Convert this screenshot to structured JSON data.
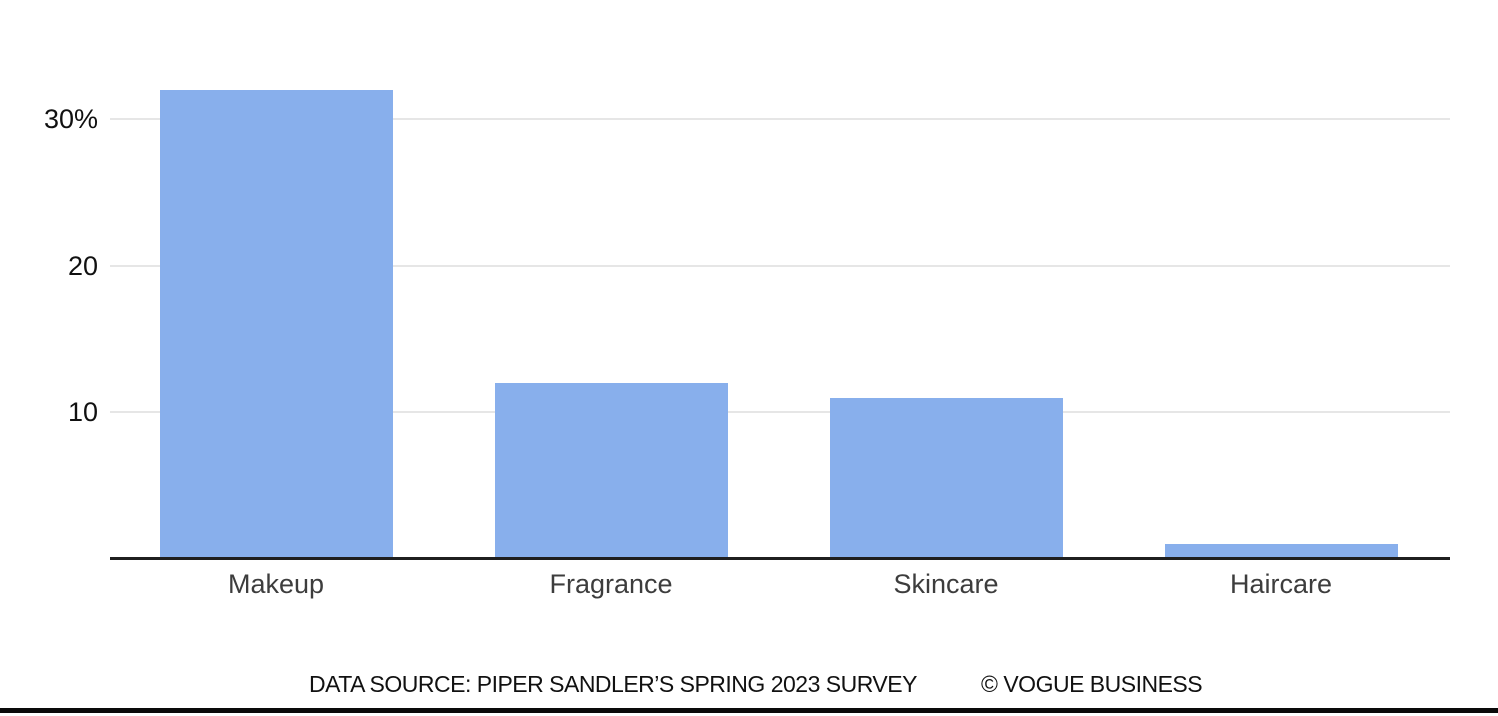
{
  "chart_data": {
    "type": "bar",
    "categories": [
      "Makeup",
      "Fragrance",
      "Skincare",
      "Haircare"
    ],
    "values": [
      32,
      12,
      11,
      1
    ],
    "title": "",
    "xlabel": "",
    "ylabel": "",
    "ylim": [
      0,
      33
    ],
    "yticks": [
      {
        "value": 30,
        "label": "30%"
      },
      {
        "value": 20,
        "label": "20"
      },
      {
        "value": 10,
        "label": "10"
      }
    ],
    "grid": true,
    "legend": false,
    "bar_color": "#88afec"
  },
  "footer": {
    "source": "DATA SOURCE: PIPER SANDLER’S SPRING 2023 SURVEY",
    "credit": "© VOGUE BUSINESS"
  },
  "colors": {
    "background": "#ffffff",
    "bar": "#88afec",
    "gridline": "#e6e6e6",
    "axis": "#1f1f1f",
    "tick_label": "#111111",
    "category_label": "#3d3d3d",
    "footer_text": "#111111",
    "bottom_bar": "#0a0a0a"
  }
}
